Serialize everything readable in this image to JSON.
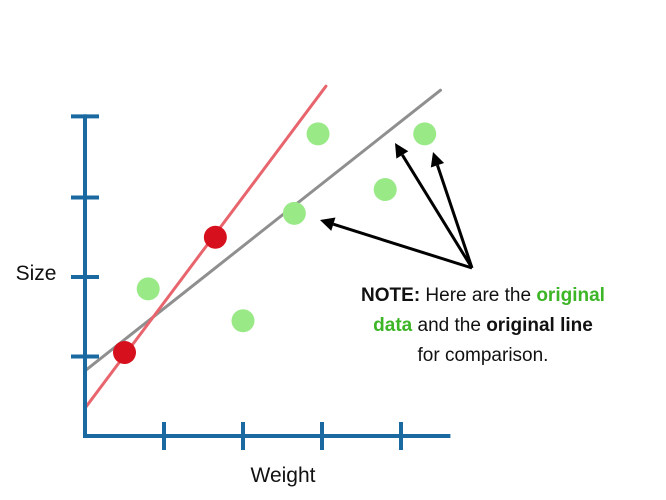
{
  "colors": {
    "axis": "#1a6aa1",
    "original_points": "#99ea87",
    "new_points": "#d6101c",
    "original_line": "#8f8f8f",
    "new_line": "#e8656d",
    "arrow": "#000000",
    "highlight": "#3cb526"
  },
  "chart_data": {
    "type": "scatter",
    "xlabel": "Weight",
    "ylabel": "Size",
    "xlim": [
      0,
      4.6
    ],
    "ylim": [
      0,
      4
    ],
    "x_ticks": [
      1,
      2,
      3,
      4
    ],
    "y_ticks": [
      1,
      2,
      3,
      4
    ],
    "tick_labels_shown": false,
    "grid": false,
    "original_data": [
      {
        "x": 0.8,
        "y": 1.85
      },
      {
        "x": 2.0,
        "y": 1.45
      },
      {
        "x": 2.65,
        "y": 2.8
      },
      {
        "x": 2.95,
        "y": 3.8
      },
      {
        "x": 3.8,
        "y": 3.1
      },
      {
        "x": 4.3,
        "y": 3.8
      }
    ],
    "new_data": [
      {
        "x": 0.5,
        "y": 1.05
      },
      {
        "x": 1.65,
        "y": 2.5
      }
    ],
    "lines": [
      {
        "role": "original",
        "x": [
          0,
          4.5
        ],
        "y": [
          0.82,
          4.35
        ]
      },
      {
        "role": "new",
        "x": [
          0,
          3.05
        ],
        "y": [
          0.35,
          4.4
        ]
      }
    ]
  },
  "note": {
    "prefix": "NOTE:",
    "part1": " Here are the ",
    "hl1": "original",
    "hl2": "data",
    "part2": " and the ",
    "bold2": "original line",
    "part3": "for comparison."
  }
}
